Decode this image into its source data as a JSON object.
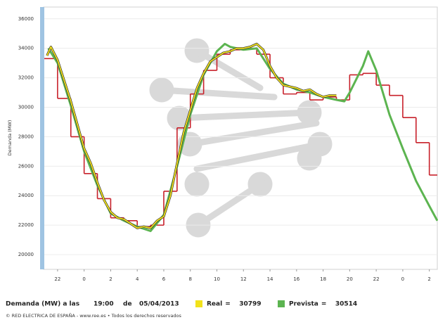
{
  "chart_data": {
    "type": "line",
    "y_label": "Demanda (MW)",
    "xlim": [
      -3,
      26.6
    ],
    "ylim": [
      19000,
      36800
    ],
    "yticks": [
      20000,
      22000,
      24000,
      26000,
      28000,
      30000,
      32000,
      34000,
      36000
    ],
    "xticks": [
      {
        "value": -2,
        "label": "22"
      },
      0,
      2,
      4,
      6,
      8,
      10,
      12,
      14,
      16,
      18,
      20,
      22,
      {
        "value": 24,
        "label": "0"
      },
      {
        "value": 26,
        "label": "2"
      }
    ],
    "grid": true,
    "series": [
      {
        "color": "#c8202a",
        "style": "step",
        "x": [
          -3,
          -2,
          -1,
          0,
          1,
          2,
          3,
          4,
          5,
          6,
          7,
          8,
          9,
          10,
          11,
          12,
          13,
          14,
          15,
          16,
          17,
          18,
          19,
          20,
          21,
          22,
          23,
          24,
          25,
          26
        ],
        "values": [
          33300,
          30600,
          28000,
          25500,
          23800,
          22500,
          22300,
          21900,
          22000,
          24300,
          28600,
          30900,
          32500,
          33600,
          33900,
          34000,
          33600,
          32000,
          30900,
          31000,
          30500,
          30700,
          30500,
          32200,
          32300,
          31500,
          30800,
          29300,
          27600,
          25400
        ]
      },
      {
        "name": "Prevista",
        "color": "#5cb450",
        "x": [
          -2.7,
          -2,
          -1,
          0,
          1,
          2,
          3,
          4,
          5,
          6,
          7,
          8,
          9,
          10,
          10.6,
          11,
          12,
          13,
          14,
          15,
          16,
          17,
          18,
          19,
          19.6,
          20,
          21,
          21.4,
          22,
          23,
          24,
          25,
          26,
          26.6
        ],
        "values": [
          34000,
          33000,
          30100,
          27000,
          24700,
          22800,
          22300,
          21900,
          21600,
          22700,
          26000,
          29500,
          32200,
          33800,
          34300,
          34100,
          33900,
          34000,
          32600,
          31600,
          31200,
          31000,
          30700,
          30500,
          30400,
          31000,
          32800,
          33800,
          32500,
          29500,
          27200,
          25000,
          23300,
          22300
        ]
      },
      {
        "name": "Real",
        "color": "#f2e21a",
        "x": [
          -2.8,
          -2.5,
          -2,
          -1,
          0,
          0.5,
          1,
          1.5,
          2,
          2.5,
          3,
          3.5,
          4,
          4.5,
          5,
          5.5,
          6,
          6.5,
          7,
          7.5,
          8,
          8.5,
          9,
          9.5,
          10,
          10.5,
          11,
          11.5,
          12,
          12.5,
          13,
          13.5,
          14,
          14.5,
          15,
          15.5,
          16,
          16.5,
          17,
          17.5,
          18,
          18.5,
          19
        ],
        "values": [
          33500,
          34100,
          33200,
          30400,
          27200,
          26200,
          24900,
          23700,
          22900,
          22500,
          22400,
          22100,
          21800,
          21900,
          21800,
          22300,
          22600,
          24000,
          26200,
          28300,
          29800,
          31300,
          32300,
          33100,
          33400,
          33700,
          33800,
          34000,
          34000,
          34100,
          34300,
          33900,
          32800,
          32000,
          31500,
          31400,
          31300,
          31100,
          31200,
          30900,
          30700,
          30800,
          30800
        ]
      }
    ],
    "readout": {
      "prefix": "Demanda (MW) a las",
      "time": "19:00",
      "joiner": "de",
      "date": "05/04/2013",
      "equals": "=",
      "real": 30799,
      "prevista": 30514
    },
    "copyright": "© RED ELECTRICA DE ESPAÑA - www.ree.es • Todos los derechos reservados"
  }
}
